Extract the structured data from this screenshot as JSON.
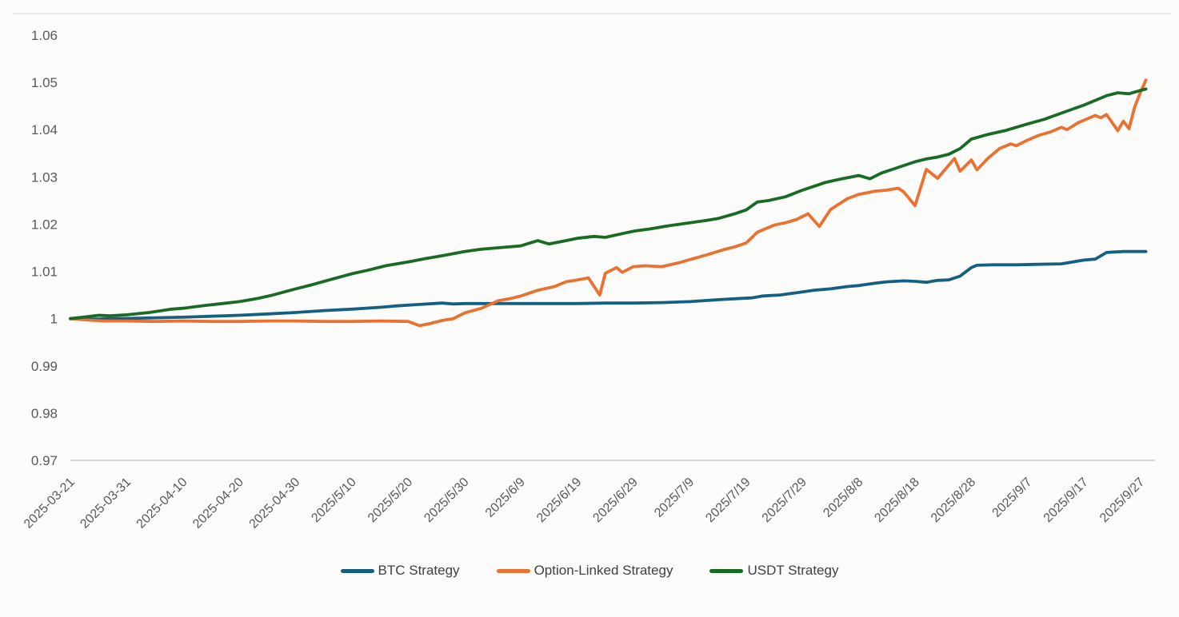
{
  "chart_data": {
    "type": "line",
    "title": "",
    "xlabel": "",
    "ylabel": "",
    "grid": false,
    "legend_position": "bottom",
    "y_axis": {
      "min": 0.97,
      "max": 1.06,
      "tick_labels": [
        "1.06",
        "1.05",
        "1.04",
        "1.03",
        "1.02",
        "1.01",
        "1",
        "0.99",
        "0.98",
        "0.97"
      ]
    },
    "x_axis": {
      "tick_interval_days": 10,
      "day_span": [
        0,
        191
      ],
      "tick_labels": [
        "2025-03-21",
        "2025-03-31",
        "2025-04-10",
        "2025-04-20",
        "2025-04-30",
        "2025/5/10",
        "2025/5/20",
        "2025/5/30",
        "2025/6/9",
        "2025/6/19",
        "2025/6/29",
        "2025/7/9",
        "2025/7/19",
        "2025/7/29",
        "2025/8/8",
        "2025/8/18",
        "2025/8/28",
        "2025/9/7",
        "2025/9/17",
        "2025/9/27"
      ]
    },
    "series": [
      {
        "name": "BTC Strategy",
        "color": "#156082",
        "points": [
          [
            0,
            1.0
          ],
          [
            4,
            0.9999
          ],
          [
            8,
            1.0
          ],
          [
            12,
            1.0001
          ],
          [
            16,
            1.0002
          ],
          [
            20,
            1.0003
          ],
          [
            25,
            1.0005
          ],
          [
            30,
            1.0007
          ],
          [
            35,
            1.001
          ],
          [
            40,
            1.0013
          ],
          [
            45,
            1.0017
          ],
          [
            50,
            1.002
          ],
          [
            55,
            1.0024
          ],
          [
            58,
            1.0027
          ],
          [
            62,
            1.003
          ],
          [
            66,
            1.0033
          ],
          [
            68,
            1.0031
          ],
          [
            70,
            1.0032
          ],
          [
            75,
            1.0032
          ],
          [
            80,
            1.0032
          ],
          [
            85,
            1.0032
          ],
          [
            90,
            1.0032
          ],
          [
            95,
            1.0033
          ],
          [
            100,
            1.0033
          ],
          [
            105,
            1.0034
          ],
          [
            110,
            1.0036
          ],
          [
            115,
            1.004
          ],
          [
            118,
            1.0042
          ],
          [
            121,
            1.0044
          ],
          [
            123,
            1.0048
          ],
          [
            126,
            1.005
          ],
          [
            129,
            1.0055
          ],
          [
            132,
            1.006
          ],
          [
            135,
            1.0063
          ],
          [
            138,
            1.0068
          ],
          [
            140,
            1.007
          ],
          [
            143,
            1.0075
          ],
          [
            145,
            1.0078
          ],
          [
            148,
            1.008
          ],
          [
            150,
            1.0079
          ],
          [
            152,
            1.0077
          ],
          [
            154,
            1.0081
          ],
          [
            156,
            1.0082
          ],
          [
            158,
            1.009
          ],
          [
            160,
            1.0108
          ],
          [
            161,
            1.0113
          ],
          [
            164,
            1.0114
          ],
          [
            168,
            1.0114
          ],
          [
            172,
            1.0115
          ],
          [
            176,
            1.0116
          ],
          [
            178,
            1.012
          ],
          [
            180,
            1.0124
          ],
          [
            182,
            1.0126
          ],
          [
            184,
            1.014
          ],
          [
            187,
            1.0142
          ],
          [
            191,
            1.0142
          ]
        ]
      },
      {
        "name": "Option-Linked Strategy",
        "color": "#E97132",
        "points": [
          [
            0,
            1.0
          ],
          [
            3,
            0.9997
          ],
          [
            6,
            0.9995
          ],
          [
            10,
            0.9995
          ],
          [
            15,
            0.9994
          ],
          [
            20,
            0.9995
          ],
          [
            25,
            0.9994
          ],
          [
            30,
            0.9994
          ],
          [
            35,
            0.9995
          ],
          [
            40,
            0.9995
          ],
          [
            45,
            0.9994
          ],
          [
            50,
            0.9994
          ],
          [
            55,
            0.9995
          ],
          [
            60,
            0.9994
          ],
          [
            62,
            0.9985
          ],
          [
            64,
            0.999
          ],
          [
            66,
            0.9996
          ],
          [
            68,
            1.0
          ],
          [
            70,
            1.0012
          ],
          [
            73,
            1.0022
          ],
          [
            76,
            1.0038
          ],
          [
            78,
            1.0042
          ],
          [
            80,
            1.0048
          ],
          [
            83,
            1.006
          ],
          [
            86,
            1.0068
          ],
          [
            88,
            1.0078
          ],
          [
            90,
            1.0082
          ],
          [
            92,
            1.0086
          ],
          [
            94,
            1.005
          ],
          [
            95,
            1.0096
          ],
          [
            97,
            1.0108
          ],
          [
            98,
            1.0098
          ],
          [
            100,
            1.011
          ],
          [
            102,
            1.0112
          ],
          [
            105,
            1.011
          ],
          [
            108,
            1.0118
          ],
          [
            110,
            1.0125
          ],
          [
            113,
            1.0135
          ],
          [
            116,
            1.0146
          ],
          [
            118,
            1.0152
          ],
          [
            120,
            1.016
          ],
          [
            122,
            1.0183
          ],
          [
            125,
            1.0198
          ],
          [
            127,
            1.0203
          ],
          [
            129,
            1.021
          ],
          [
            131,
            1.0222
          ],
          [
            133,
            1.0195
          ],
          [
            135,
            1.0231
          ],
          [
            138,
            1.0254
          ],
          [
            140,
            1.0263
          ],
          [
            143,
            1.027
          ],
          [
            145,
            1.0272
          ],
          [
            147,
            1.0276
          ],
          [
            148,
            1.0268
          ],
          [
            150,
            1.0239
          ],
          [
            152,
            1.0316
          ],
          [
            154,
            1.0297
          ],
          [
            157,
            1.0339
          ],
          [
            158,
            1.0312
          ],
          [
            160,
            1.0336
          ],
          [
            161,
            1.0315
          ],
          [
            163,
            1.034
          ],
          [
            165,
            1.036
          ],
          [
            167,
            1.037
          ],
          [
            168,
            1.0366
          ],
          [
            170,
            1.0378
          ],
          [
            172,
            1.0388
          ],
          [
            174,
            1.0395
          ],
          [
            176,
            1.0405
          ],
          [
            177,
            1.04
          ],
          [
            179,
            1.0415
          ],
          [
            180,
            1.042
          ],
          [
            182,
            1.043
          ],
          [
            183,
            1.0425
          ],
          [
            184,
            1.0432
          ],
          [
            186,
            1.0398
          ],
          [
            187,
            1.0418
          ],
          [
            188,
            1.0402
          ],
          [
            189,
            1.0448
          ],
          [
            190,
            1.0478
          ],
          [
            191,
            1.0505
          ]
        ]
      },
      {
        "name": "USDT Strategy",
        "color": "#196B24",
        "points": [
          [
            0,
            1.0
          ],
          [
            3,
            1.0004
          ],
          [
            5,
            1.0007
          ],
          [
            7,
            1.0006
          ],
          [
            10,
            1.0008
          ],
          [
            14,
            1.0013
          ],
          [
            18,
            1.002
          ],
          [
            20,
            1.0022
          ],
          [
            24,
            1.0028
          ],
          [
            27,
            1.0032
          ],
          [
            30,
            1.0036
          ],
          [
            33,
            1.0042
          ],
          [
            36,
            1.005
          ],
          [
            40,
            1.0063
          ],
          [
            43,
            1.0072
          ],
          [
            46,
            1.0082
          ],
          [
            50,
            1.0095
          ],
          [
            53,
            1.0103
          ],
          [
            56,
            1.0112
          ],
          [
            60,
            1.012
          ],
          [
            63,
            1.0127
          ],
          [
            66,
            1.0133
          ],
          [
            70,
            1.0142
          ],
          [
            73,
            1.0147
          ],
          [
            76,
            1.015
          ],
          [
            80,
            1.0154
          ],
          [
            83,
            1.0165
          ],
          [
            85,
            1.0158
          ],
          [
            88,
            1.0165
          ],
          [
            90,
            1.017
          ],
          [
            93,
            1.0174
          ],
          [
            95,
            1.0172
          ],
          [
            98,
            1.018
          ],
          [
            100,
            1.0185
          ],
          [
            103,
            1.019
          ],
          [
            106,
            1.0196
          ],
          [
            110,
            1.0203
          ],
          [
            113,
            1.0208
          ],
          [
            115,
            1.0212
          ],
          [
            118,
            1.0222
          ],
          [
            120,
            1.023
          ],
          [
            122,
            1.0247
          ],
          [
            124,
            1.025
          ],
          [
            127,
            1.0258
          ],
          [
            130,
            1.0272
          ],
          [
            132,
            1.028
          ],
          [
            134,
            1.0288
          ],
          [
            137,
            1.0296
          ],
          [
            140,
            1.0303
          ],
          [
            142,
            1.0296
          ],
          [
            144,
            1.0308
          ],
          [
            147,
            1.032
          ],
          [
            150,
            1.0332
          ],
          [
            152,
            1.0338
          ],
          [
            154,
            1.0342
          ],
          [
            156,
            1.0348
          ],
          [
            158,
            1.036
          ],
          [
            160,
            1.038
          ],
          [
            163,
            1.039
          ],
          [
            166,
            1.0398
          ],
          [
            170,
            1.0412
          ],
          [
            173,
            1.0422
          ],
          [
            176,
            1.0435
          ],
          [
            180,
            1.0452
          ],
          [
            182,
            1.0462
          ],
          [
            184,
            1.0472
          ],
          [
            186,
            1.0478
          ],
          [
            188,
            1.0476
          ],
          [
            190,
            1.0483
          ],
          [
            191,
            1.0486
          ]
        ]
      }
    ]
  },
  "legend": {
    "items": [
      {
        "label": "BTC Strategy",
        "color": "#156082"
      },
      {
        "label": "Option-Linked Strategy",
        "color": "#E97132"
      },
      {
        "label": "USDT Strategy",
        "color": "#196B24"
      }
    ]
  },
  "colors": {
    "axis_line": "#D6D6D3",
    "axis_text": "#595959",
    "legend_text": "#404040",
    "background": "#FBFBF9"
  }
}
